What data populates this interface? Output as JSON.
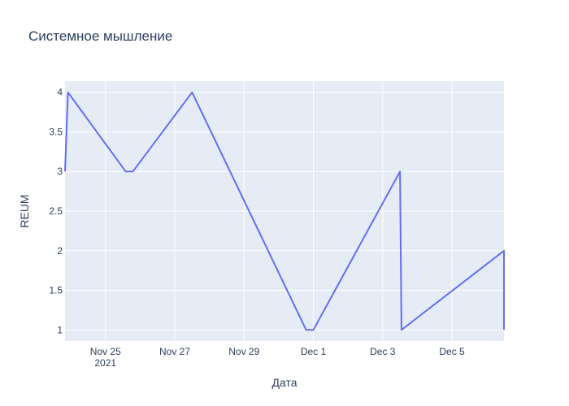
{
  "chart_data": {
    "type": "line",
    "title": "Системное мышление",
    "xlabel": "Дата",
    "ylabel": "REUM",
    "x_tick_labels": [
      "Nov 25",
      "Nov 27",
      "Nov 29",
      "Dec 1",
      "Dec 3",
      "Dec 5"
    ],
    "x_tick_sublabel": "2021",
    "y_tick_labels": [
      "1",
      "1.5",
      "2",
      "2.5",
      "3",
      "3.5",
      "4"
    ],
    "xlim": [
      "2021-11-23 20:00",
      "2021-12-06 12:00"
    ],
    "ylim": [
      0.86,
      4.14
    ],
    "grid": true,
    "legend": false,
    "colors": {
      "plot_bg": "#e5ecf6",
      "line": "#636efa",
      "grid": "#ffffff",
      "text": "#2a3f5f"
    },
    "series": [
      {
        "x": [
          "2021-11-23 20:00",
          "2021-11-23 22:00",
          "2021-11-25 14:00",
          "2021-11-25 19:00",
          "2021-11-27 12:00",
          "2021-11-30 19:00",
          "2021-12-01 00:00",
          "2021-12-03 12:00",
          "2021-12-03 13:00",
          "2021-12-06 12:00",
          "2021-12-06 12:01"
        ],
        "y": [
          3.0,
          4.0,
          3.0,
          3.0,
          4.0,
          1.0,
          1.0,
          3.0,
          1.0,
          2.0,
          1.0
        ]
      }
    ]
  }
}
